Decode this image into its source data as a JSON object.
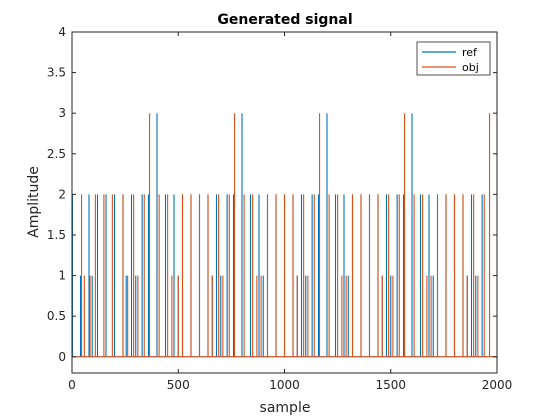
{
  "chart_data": {
    "type": "line",
    "title": "Generated signal",
    "xlabel": "sample",
    "ylabel": "Amplitude",
    "xlim": [
      0,
      2000
    ],
    "ylim": [
      -0.2,
      4
    ],
    "xticks": [
      0,
      500,
      1000,
      1500,
      2000
    ],
    "yticks": [
      0,
      0.5,
      1,
      1.5,
      2,
      2.5,
      3,
      3.5,
      4
    ],
    "grid": false,
    "legend_position": "top-right",
    "series": [
      {
        "name": "ref",
        "color": "#0072BD",
        "spikes": [
          [
            2,
            2
          ],
          [
            40,
            1
          ],
          [
            80,
            2
          ],
          [
            95,
            1
          ],
          [
            120,
            2
          ],
          [
            160,
            2
          ],
          [
            200,
            2
          ],
          [
            240,
            2
          ],
          [
            255,
            1
          ],
          [
            280,
            2
          ],
          [
            300,
            1
          ],
          [
            330,
            2
          ],
          [
            360,
            2
          ],
          [
            400,
            3
          ],
          [
            440,
            2
          ],
          [
            480,
            2
          ],
          [
            500,
            1
          ],
          [
            520,
            2
          ],
          [
            560,
            2
          ],
          [
            600,
            2
          ],
          [
            640,
            2
          ],
          [
            660,
            1
          ],
          [
            680,
            2
          ],
          [
            700,
            1
          ],
          [
            730,
            2
          ],
          [
            760,
            2
          ],
          [
            800,
            3
          ],
          [
            840,
            2
          ],
          [
            880,
            2
          ],
          [
            900,
            1
          ],
          [
            920,
            2
          ],
          [
            960,
            2
          ],
          [
            1000,
            2
          ],
          [
            1040,
            2
          ],
          [
            1060,
            1
          ],
          [
            1080,
            2
          ],
          [
            1100,
            1
          ],
          [
            1130,
            2
          ],
          [
            1160,
            2
          ],
          [
            1200,
            3
          ],
          [
            1240,
            2
          ],
          [
            1280,
            2
          ],
          [
            1300,
            1
          ],
          [
            1320,
            2
          ],
          [
            1360,
            2
          ],
          [
            1400,
            2
          ],
          [
            1440,
            2
          ],
          [
            1460,
            1
          ],
          [
            1480,
            2
          ],
          [
            1500,
            1
          ],
          [
            1530,
            2
          ],
          [
            1560,
            2
          ],
          [
            1600,
            3
          ],
          [
            1640,
            2
          ],
          [
            1680,
            2
          ],
          [
            1700,
            1
          ],
          [
            1720,
            2
          ],
          [
            1760,
            2
          ],
          [
            1800,
            2
          ],
          [
            1840,
            2
          ],
          [
            1860,
            1
          ],
          [
            1880,
            2
          ],
          [
            1900,
            1
          ],
          [
            1930,
            2
          ]
        ]
      },
      {
        "name": "obj",
        "color": "#D95319",
        "spikes": [
          [
            45,
            2
          ],
          [
            58,
            1
          ],
          [
            85,
            1
          ],
          [
            110,
            2
          ],
          [
            150,
            2
          ],
          [
            190,
            2
          ],
          [
            240,
            2
          ],
          [
            262,
            1
          ],
          [
            290,
            2
          ],
          [
            310,
            1
          ],
          [
            340,
            2
          ],
          [
            365,
            3
          ],
          [
            410,
            2
          ],
          [
            450,
            2
          ],
          [
            470,
            1
          ],
          [
            500,
            1
          ],
          [
            520,
            2
          ],
          [
            560,
            2
          ],
          [
            600,
            2
          ],
          [
            640,
            2
          ],
          [
            660,
            1
          ],
          [
            690,
            2
          ],
          [
            710,
            1
          ],
          [
            740,
            2
          ],
          [
            765,
            3
          ],
          [
            810,
            2
          ],
          [
            850,
            2
          ],
          [
            870,
            1
          ],
          [
            890,
            1
          ],
          [
            920,
            2
          ],
          [
            960,
            2
          ],
          [
            1000,
            2
          ],
          [
            1040,
            2
          ],
          [
            1060,
            1
          ],
          [
            1090,
            2
          ],
          [
            1110,
            1
          ],
          [
            1140,
            2
          ],
          [
            1165,
            3
          ],
          [
            1210,
            2
          ],
          [
            1250,
            2
          ],
          [
            1270,
            1
          ],
          [
            1290,
            1
          ],
          [
            1320,
            2
          ],
          [
            1360,
            2
          ],
          [
            1400,
            2
          ],
          [
            1440,
            2
          ],
          [
            1460,
            1
          ],
          [
            1490,
            2
          ],
          [
            1510,
            1
          ],
          [
            1540,
            2
          ],
          [
            1565,
            3
          ],
          [
            1610,
            2
          ],
          [
            1650,
            2
          ],
          [
            1670,
            1
          ],
          [
            1690,
            1
          ],
          [
            1720,
            2
          ],
          [
            1760,
            2
          ],
          [
            1800,
            2
          ],
          [
            1840,
            2
          ],
          [
            1860,
            1
          ],
          [
            1890,
            2
          ],
          [
            1910,
            1
          ],
          [
            1940,
            2
          ],
          [
            1965,
            3
          ]
        ]
      }
    ]
  }
}
